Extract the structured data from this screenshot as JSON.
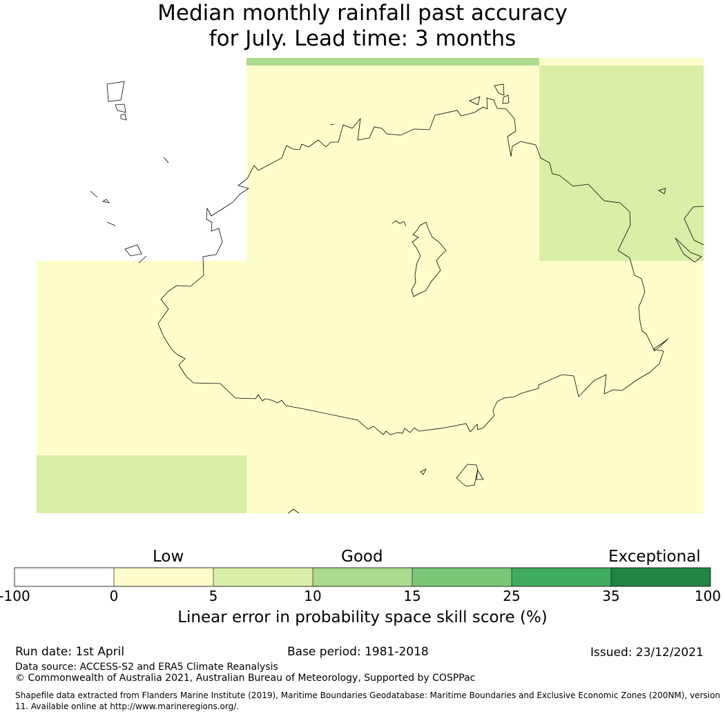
{
  "title": {
    "line1": "Median monthly rainfall past accuracy",
    "line2": "for July. Lead time: 3 months"
  },
  "colors": {
    "white": "#ffffff",
    "pale_yellow": "#fefecc",
    "light_green": "#d9eea6",
    "green1": "#aadb8e",
    "green2": "#7bc77a",
    "green3": "#41ab5d",
    "dark_green": "#238443"
  },
  "legend": {
    "categories": {
      "low": "Low",
      "good": "Good",
      "exceptional": "Exceptional"
    },
    "ticks": [
      "-100",
      "0",
      "5",
      "10",
      "15",
      "25",
      "35",
      "100"
    ],
    "bins": [
      {
        "range": "-100 to 0",
        "color": "#ffffff"
      },
      {
        "range": "0 to 5",
        "color": "#fefecc"
      },
      {
        "range": "5 to 10",
        "color": "#d9eea6"
      },
      {
        "range": "10 to 15",
        "color": "#aadb8e"
      },
      {
        "range": "15 to 25",
        "color": "#7bc77a"
      },
      {
        "range": "25 to 35",
        "color": "#41ab5d"
      },
      {
        "range": "35 to 100",
        "color": "#238443"
      }
    ],
    "label": "Linear error in probability space skill score (%)"
  },
  "footer": {
    "run_date": "Run date: 1st April",
    "base_period": "Base period: 1981-2018",
    "issued": "Issued: 23/12/2021",
    "data_source": "Data source: ACCESS-S2 and ERA5 Climate Reanalysis",
    "copyright": "© Commonwealth of Australia 2021, Australian Bureau of Meteorology, Supported by COSPPac",
    "shapefile": "Shapefile data extracted from Flanders Marine Institute (2019), Maritime Boundaries Geodatabase: Maritime Boundaries and Exclusive Economic Zones (200NM), version 11. Available online at http://www.marineregions.org/."
  }
}
